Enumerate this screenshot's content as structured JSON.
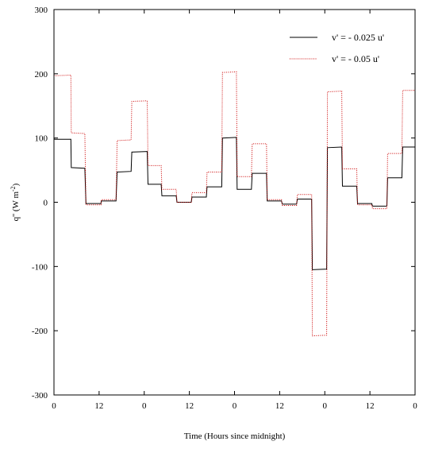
{
  "chart_data": {
    "type": "line",
    "xlabel": "Time (Hours since midnight)",
    "ylabel": "q'' (W m",
    "ylabel_sup": "-2",
    "ylabel_close": ")",
    "xlim": [
      0,
      96
    ],
    "ylim": [
      -300,
      300
    ],
    "yticks": [
      -300,
      -200,
      -100,
      0,
      100,
      200,
      300
    ],
    "ytick_labels": [
      "-300",
      "-200",
      "-100",
      "0",
      "100",
      "200",
      "300"
    ],
    "xticks": [
      0,
      12,
      24,
      36,
      48,
      60,
      72,
      84,
      96
    ],
    "xtick_labels": [
      "0",
      "12",
      "0",
      "12",
      "0",
      "12",
      "0",
      "12",
      "0"
    ],
    "legend_position": "top-right",
    "series": [
      {
        "name": "v' = - 0.025 u'",
        "color": "#000000",
        "dash": "solid",
        "x": [
          0,
          0.2,
          4.5,
          4.6,
          8.2,
          8.5,
          12.5,
          12.6,
          16.5,
          16.8,
          20.5,
          20.7,
          24.8,
          25.0,
          28.5,
          28.7,
          32.5,
          32.7,
          36.5,
          36.7,
          40.5,
          40.7,
          44.6,
          44.8,
          48.5,
          48.7,
          52.5,
          52.7,
          56.5,
          56.7,
          60.5,
          60.7,
          64.5,
          64.7,
          68.5,
          68.7,
          72.5,
          72.7,
          76.5,
          76.7,
          80.5,
          80.7,
          84.5,
          84.7,
          88.5,
          88.7,
          92.5,
          92.7,
          96
        ],
        "y": [
          99,
          98,
          98,
          54,
          53,
          -2,
          -2,
          2,
          2,
          47,
          48,
          78,
          79,
          28,
          28,
          10,
          10,
          0,
          0,
          8,
          8,
          24,
          24,
          100,
          101,
          20,
          20,
          45,
          45,
          2,
          2,
          -3,
          -3,
          5,
          5,
          -105,
          -104,
          85,
          86,
          25,
          25,
          -2,
          -2,
          -6,
          -6,
          38,
          38,
          86,
          86
        ]
      },
      {
        "name": "v' = - 0.05 u'",
        "color": "#cc0000",
        "dash": "dotted",
        "x": [
          0,
          0.2,
          4.5,
          4.6,
          8.2,
          8.5,
          12.5,
          12.6,
          16.5,
          16.8,
          20.5,
          20.7,
          24.8,
          25.0,
          28.5,
          28.7,
          32.5,
          32.7,
          36.5,
          36.7,
          40.5,
          40.7,
          44.6,
          44.8,
          48.5,
          48.7,
          52.5,
          52.7,
          56.5,
          56.7,
          60.5,
          60.7,
          64.5,
          64.7,
          68.5,
          68.7,
          72.5,
          72.7,
          76.5,
          76.7,
          80.5,
          80.7,
          84.5,
          84.7,
          88.5,
          88.7,
          92.5,
          92.7,
          96
        ],
        "y": [
          198,
          197,
          198,
          108,
          107,
          -4,
          -4,
          4,
          4,
          96,
          97,
          157,
          158,
          57,
          57,
          20,
          20,
          0,
          0,
          15,
          15,
          47,
          47,
          202,
          203,
          40,
          40,
          91,
          91,
          4,
          4,
          -5,
          -5,
          12,
          12,
          -208,
          -207,
          172,
          173,
          52,
          52,
          -4,
          -4,
          -10,
          -10,
          76,
          76,
          174,
          174
        ]
      }
    ]
  }
}
